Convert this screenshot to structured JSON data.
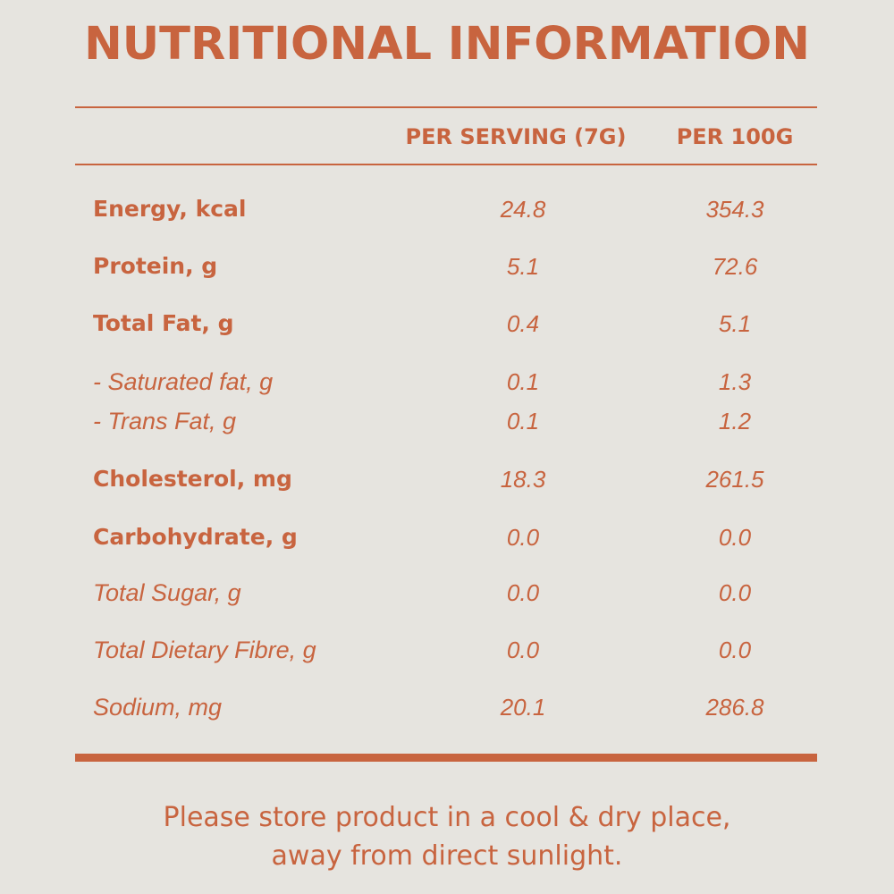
{
  "title": "NUTRITIONAL INFORMATION",
  "columns": {
    "per_serving": "PER SERVING (7G)",
    "per_100g": "PER 100G"
  },
  "rows": [
    {
      "label": "Energy, kcal",
      "per_serving": "24.8",
      "per_100g": "354.3",
      "style": "bold"
    },
    {
      "label": "Protein, g",
      "per_serving": "5.1",
      "per_100g": "72.6",
      "style": "bold"
    },
    {
      "label": "Total Fat, g",
      "per_serving": "0.4",
      "per_100g": "5.1",
      "style": "bold"
    },
    {
      "label": "- Saturated fat, g",
      "per_serving": "0.1",
      "per_100g": "1.3",
      "style": "italic"
    },
    {
      "label": "- Trans Fat, g",
      "per_serving": "0.1",
      "per_100g": "1.2",
      "style": "italic"
    },
    {
      "label": "Cholesterol, mg",
      "per_serving": "18.3",
      "per_100g": "261.5",
      "style": "bold"
    },
    {
      "label": "Carbohydrate, g",
      "per_serving": "0.0",
      "per_100g": "0.0",
      "style": "bold"
    },
    {
      "label": "Total Sugar, g",
      "per_serving": "0.0",
      "per_100g": "0.0",
      "style": "italic"
    },
    {
      "label": "Total Dietary Fibre, g",
      "per_serving": "0.0",
      "per_100g": "0.0",
      "style": "italic"
    },
    {
      "label": "Sodium, mg",
      "per_serving": "20.1",
      "per_100g": "286.8",
      "style": "italic"
    }
  ],
  "storage_note": {
    "line1": "Please store product in a cool & dry place,",
    "line2": "away from direct sunlight."
  },
  "colors": {
    "accent": "#c8643f",
    "background": "#e6e4df"
  }
}
